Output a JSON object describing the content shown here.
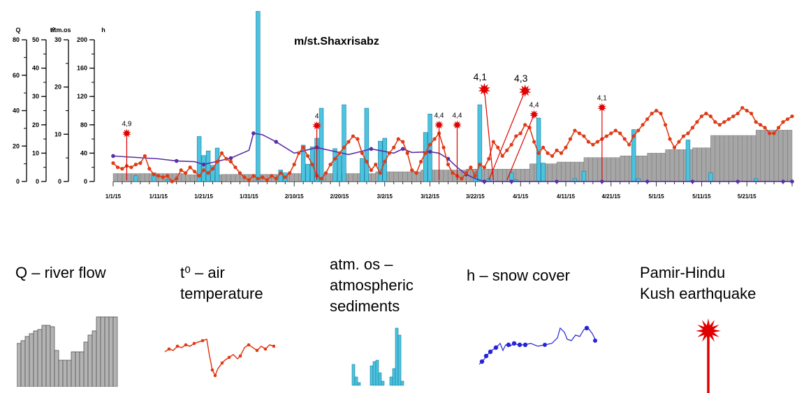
{
  "chart_data": {
    "type": "combo",
    "title": "m/st.Shaxrisabz",
    "axes": [
      {
        "label": "Q",
        "min": 0,
        "max": 80,
        "ticks": [
          0,
          20,
          40,
          60,
          80
        ]
      },
      {
        "label": "t⁰",
        "min": 0,
        "max": 50,
        "ticks": [
          0,
          10,
          20,
          30,
          40,
          50
        ]
      },
      {
        "label": "atm.os",
        "min": 0,
        "max": 30,
        "ticks": [
          0,
          10,
          20,
          30
        ]
      },
      {
        "label": "h",
        "min": 0,
        "max": 200,
        "ticks": [
          0,
          40,
          80,
          120,
          160,
          200
        ]
      }
    ],
    "x_ticks": [
      "1/1/15",
      "1/11/15",
      "1/21/15",
      "1/31/15",
      "2/10/15",
      "2/20/15",
      "3/2/15",
      "3/12/15",
      "3/22/15",
      "4/1/15",
      "4/11/15",
      "4/21/15",
      "5/1/15",
      "5/11/15",
      "5/21/15"
    ],
    "x_range_days": [
      0,
      150
    ],
    "series": [
      {
        "name": "Q",
        "kind": "grey-bars",
        "color": "#a6a6a6",
        "points": [
          [
            0,
            4.5
          ],
          [
            16,
            4.5
          ],
          [
            16,
            3.8
          ],
          [
            24,
            3.8
          ],
          [
            24,
            4
          ],
          [
            38,
            4
          ],
          [
            38,
            4.5
          ],
          [
            58,
            4.5
          ],
          [
            58,
            5.5
          ],
          [
            68,
            5.5
          ],
          [
            68,
            6.5
          ],
          [
            78,
            6.5
          ],
          [
            78,
            7
          ],
          [
            92,
            7
          ],
          [
            92,
            10
          ],
          [
            98,
            10
          ],
          [
            98,
            11
          ],
          [
            104,
            11
          ],
          [
            104,
            13.5
          ],
          [
            112,
            13.5
          ],
          [
            112,
            14.5
          ],
          [
            118,
            14.5
          ],
          [
            118,
            16
          ],
          [
            122,
            16
          ],
          [
            122,
            18
          ],
          [
            128,
            18
          ],
          [
            128,
            19
          ],
          [
            132,
            19
          ],
          [
            132,
            26
          ],
          [
            142,
            26
          ],
          [
            142,
            29
          ],
          [
            150,
            29
          ]
        ]
      },
      {
        "name": "t⁰",
        "kind": "red-line",
        "color": "#e03a14",
        "points": [
          [
            0,
            6.5
          ],
          [
            1,
            5
          ],
          [
            2,
            4.5
          ],
          [
            3,
            5.5
          ],
          [
            4,
            5
          ],
          [
            5,
            6
          ],
          [
            6,
            6.5
          ],
          [
            7,
            9
          ],
          [
            8,
            4.5
          ],
          [
            9,
            2.5
          ],
          [
            10,
            2
          ],
          [
            11,
            1.5
          ],
          [
            12,
            2
          ],
          [
            13,
            0
          ],
          [
            14,
            1
          ],
          [
            15,
            4
          ],
          [
            16,
            3
          ],
          [
            17,
            5
          ],
          [
            18,
            3.5
          ],
          [
            19,
            2
          ],
          [
            20,
            4
          ],
          [
            21,
            3
          ],
          [
            22,
            4.5
          ],
          [
            23,
            7
          ],
          [
            24,
            10
          ],
          [
            25,
            8
          ],
          [
            26,
            7
          ],
          [
            27,
            5
          ],
          [
            28,
            3
          ],
          [
            29,
            1.5
          ],
          [
            30,
            0.5
          ],
          [
            31,
            2
          ],
          [
            32,
            1
          ],
          [
            33,
            1.5
          ],
          [
            34,
            0.5
          ],
          [
            35,
            2
          ],
          [
            36,
            1
          ],
          [
            37,
            3
          ],
          [
            38,
            1.5
          ],
          [
            39,
            3
          ],
          [
            40,
            6
          ],
          [
            41,
            10
          ],
          [
            42,
            12
          ],
          [
            43,
            9
          ],
          [
            44,
            6
          ],
          [
            45,
            2
          ],
          [
            46,
            1
          ],
          [
            47,
            3
          ],
          [
            48,
            6
          ],
          [
            49,
            8
          ],
          [
            50,
            10
          ],
          [
            51,
            12
          ],
          [
            52,
            14
          ],
          [
            53,
            16
          ],
          [
            54,
            15
          ],
          [
            55,
            10
          ],
          [
            56,
            7
          ],
          [
            57,
            4
          ],
          [
            58,
            6
          ],
          [
            59,
            3
          ],
          [
            60,
            7
          ],
          [
            61,
            10
          ],
          [
            62,
            12
          ],
          [
            63,
            15
          ],
          [
            64,
            14
          ],
          [
            65,
            10
          ],
          [
            66,
            4
          ],
          [
            67,
            3
          ],
          [
            68,
            7
          ],
          [
            69,
            10
          ],
          [
            70,
            13
          ],
          [
            71,
            15
          ],
          [
            72,
            17
          ],
          [
            73,
            12
          ],
          [
            74,
            6
          ],
          [
            75,
            3
          ],
          [
            76,
            2
          ],
          [
            77,
            1
          ],
          [
            78,
            3
          ],
          [
            79,
            5
          ],
          [
            80,
            2
          ],
          [
            81,
            6
          ],
          [
            82,
            5
          ],
          [
            83,
            8
          ],
          [
            84,
            14
          ],
          [
            85,
            12
          ],
          [
            86,
            9
          ],
          [
            87,
            11
          ],
          [
            88,
            13
          ],
          [
            89,
            16
          ],
          [
            90,
            17
          ],
          [
            91,
            20
          ],
          [
            92,
            19
          ],
          [
            93,
            14
          ],
          [
            94,
            10
          ],
          [
            95,
            12
          ],
          [
            96,
            10
          ],
          [
            97,
            9
          ],
          [
            98,
            11
          ],
          [
            99,
            10
          ],
          [
            100,
            12
          ],
          [
            101,
            15
          ],
          [
            102,
            18
          ],
          [
            103,
            17
          ],
          [
            104,
            16
          ],
          [
            105,
            14
          ],
          [
            106,
            13
          ],
          [
            107,
            14
          ],
          [
            108,
            15
          ],
          [
            109,
            16
          ],
          [
            110,
            17
          ],
          [
            111,
            18
          ],
          [
            112,
            17
          ],
          [
            113,
            15
          ],
          [
            114,
            13
          ],
          [
            115,
            16
          ],
          [
            116,
            18
          ],
          [
            117,
            20
          ],
          [
            118,
            22
          ],
          [
            119,
            24
          ],
          [
            120,
            25
          ],
          [
            121,
            24
          ],
          [
            122,
            20
          ],
          [
            123,
            15
          ],
          [
            124,
            12
          ],
          [
            125,
            14
          ],
          [
            126,
            16
          ],
          [
            127,
            17
          ],
          [
            128,
            19
          ],
          [
            129,
            21
          ],
          [
            130,
            23
          ],
          [
            131,
            24
          ],
          [
            132,
            23
          ],
          [
            133,
            21
          ],
          [
            134,
            20
          ],
          [
            135,
            21
          ],
          [
            136,
            22
          ],
          [
            137,
            23
          ],
          [
            138,
            24
          ],
          [
            139,
            26
          ],
          [
            140,
            25
          ],
          [
            141,
            24
          ],
          [
            142,
            21
          ],
          [
            143,
            20
          ],
          [
            144,
            19
          ],
          [
            145,
            17
          ],
          [
            146,
            17
          ],
          [
            147,
            19
          ],
          [
            148,
            21
          ],
          [
            149,
            22
          ],
          [
            150,
            23
          ]
        ]
      },
      {
        "name": "atm.os",
        "kind": "blue-bars",
        "color": "#4cc3df",
        "bars": [
          [
            5,
            1
          ],
          [
            9,
            1.5
          ],
          [
            12,
            0.3
          ],
          [
            19,
            7.8
          ],
          [
            20,
            4.5
          ],
          [
            21,
            5.3
          ],
          [
            22,
            2.8
          ],
          [
            23,
            5.8
          ],
          [
            32,
            29.5
          ],
          [
            37,
            2
          ],
          [
            38,
            1.5
          ],
          [
            42,
            6.3
          ],
          [
            43,
            3
          ],
          [
            44,
            6
          ],
          [
            45,
            7.5
          ],
          [
            46,
            12.7
          ],
          [
            49,
            5.7
          ],
          [
            50,
            4.5
          ],
          [
            51,
            13.3
          ],
          [
            55,
            4
          ],
          [
            56,
            12.7
          ],
          [
            59,
            7
          ],
          [
            60,
            7.5
          ],
          [
            69,
            8.5
          ],
          [
            70,
            11.7
          ],
          [
            80,
            1.5
          ],
          [
            81,
            13.3
          ],
          [
            83,
            0.5
          ],
          [
            88,
            1.5
          ],
          [
            89,
            0.3
          ],
          [
            94,
            11
          ],
          [
            95,
            3.2
          ],
          [
            102,
            0.5
          ],
          [
            104,
            1.8
          ],
          [
            115,
            9
          ],
          [
            116,
            0.5
          ],
          [
            127,
            7.2
          ],
          [
            132,
            1.5
          ],
          [
            142,
            0.5
          ]
        ]
      },
      {
        "name": "h",
        "kind": "purple-line",
        "color": "#5a2ea6",
        "points": [
          [
            0,
            36
          ],
          [
            10,
            32
          ],
          [
            14,
            29
          ],
          [
            18,
            28
          ],
          [
            20,
            24
          ],
          [
            22,
            27
          ],
          [
            26,
            33
          ],
          [
            30,
            44
          ],
          [
            31,
            68
          ],
          [
            33,
            66
          ],
          [
            36,
            56
          ],
          [
            40,
            40
          ],
          [
            45,
            48
          ],
          [
            52,
            38
          ],
          [
            57,
            46
          ],
          [
            62,
            40
          ],
          [
            64,
            46
          ],
          [
            66,
            41
          ],
          [
            70,
            42
          ],
          [
            72,
            40
          ],
          [
            74,
            32
          ],
          [
            76,
            20
          ],
          [
            78,
            10
          ],
          [
            80,
            4
          ],
          [
            82,
            0
          ],
          [
            86,
            0
          ],
          [
            150,
            0
          ]
        ]
      }
    ],
    "earthquakes": [
      {
        "day": 3,
        "magnitude": "4,9"
      },
      {
        "day": 45,
        "magnitude": "4"
      },
      {
        "day": 72,
        "magnitude": "4,4"
      },
      {
        "day": 76,
        "magnitude": "4,4"
      },
      {
        "day": 82,
        "magnitude": "4,1"
      },
      {
        "day": 91,
        "magnitude": "4,3"
      },
      {
        "day": 93,
        "magnitude": "4,4"
      },
      {
        "day": 108,
        "magnitude": "4,1"
      }
    ]
  },
  "legend": [
    {
      "key": "q",
      "lines": [
        "Q  – river flow"
      ]
    },
    {
      "key": "t",
      "lines": [
        "t⁰  – air",
        "temperature"
      ]
    },
    {
      "key": "atm",
      "lines": [
        "atm. os  –",
        "atmospheric",
        "sediments"
      ]
    },
    {
      "key": "h",
      "lines": [
        "h  – snow cover"
      ]
    },
    {
      "key": "eq",
      "lines": [
        "Pamir-Hindu",
        "Kush earthquake"
      ]
    }
  ]
}
